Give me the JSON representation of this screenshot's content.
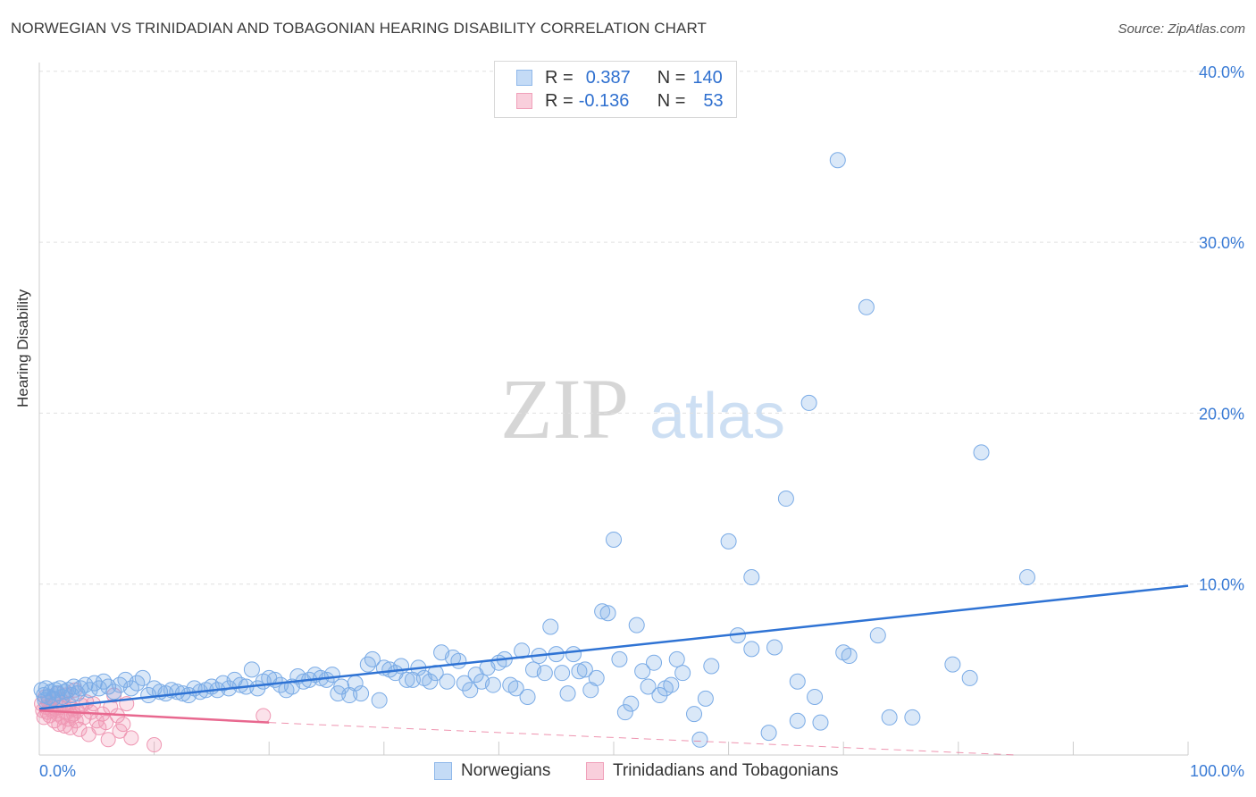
{
  "title": "NORWEGIAN VS TRINIDADIAN AND TOBAGONIAN HEARING DISABILITY CORRELATION CHART",
  "source": "Source: ZipAtlas.com",
  "watermark": {
    "zip": "ZIP",
    "atlas": "atlas"
  },
  "legend": {
    "rows": [
      {
        "r_label": "R =",
        "r_value": "0.387",
        "n_label": "N =",
        "n_value": "140",
        "color": "#8fb8ea",
        "fill": "#c4dbf6"
      },
      {
        "r_label": "R =",
        "r_value": "-0.136",
        "n_label": "N =",
        "n_value": "53",
        "color": "#f0a0ba",
        "fill": "#f9cfdc"
      }
    ]
  },
  "colors": {
    "blue_line": "#2f73d4",
    "pink_line": "#e8688f",
    "blue_point": "#7aabe6",
    "pink_point": "#ef97b3",
    "tick_text": "#3a7bd5",
    "grid": "#e0e0e0"
  },
  "chart_data": {
    "type": "scatter",
    "title": "NORWEGIAN VS TRINIDADIAN AND TOBAGONIAN HEARING DISABILITY CORRELATION CHART",
    "xlabel": "",
    "ylabel": "Hearing Disability",
    "xlim": [
      0,
      100
    ],
    "ylim": [
      0,
      41
    ],
    "x_tick_labels": [
      "0.0%",
      "100.0%"
    ],
    "y_ticks": [
      10,
      20,
      30,
      40
    ],
    "y_tick_labels": [
      "10.0%",
      "20.0%",
      "30.0%",
      "40.0%"
    ],
    "grid": true,
    "legend_position": "bottom",
    "series": [
      {
        "name": "Norwegians",
        "color": "#7aabe6",
        "trend": {
          "x": [
            0,
            100
          ],
          "y": [
            2.7,
            9.9
          ],
          "style": "solid"
        },
        "points": [
          [
            0.2,
            3.8
          ],
          [
            0.4,
            3.5
          ],
          [
            0.5,
            3.2
          ],
          [
            0.6,
            3.9
          ],
          [
            0.8,
            3.4
          ],
          [
            1.0,
            3.7
          ],
          [
            1.2,
            3.3
          ],
          [
            1.4,
            3.8
          ],
          [
            1.6,
            3.6
          ],
          [
            1.8,
            3.9
          ],
          [
            2.0,
            3.4
          ],
          [
            2.2,
            3.7
          ],
          [
            2.5,
            3.8
          ],
          [
            2.8,
            3.5
          ],
          [
            3.0,
            4.0
          ],
          [
            3.3,
            3.6
          ],
          [
            3.6,
            3.9
          ],
          [
            4.0,
            4.1
          ],
          [
            4.4,
            3.8
          ],
          [
            4.8,
            4.2
          ],
          [
            5.2,
            3.9
          ],
          [
            5.6,
            4.3
          ],
          [
            6.0,
            4.0
          ],
          [
            6.5,
            3.7
          ],
          [
            7.0,
            4.1
          ],
          [
            7.5,
            4.4
          ],
          [
            8.0,
            3.9
          ],
          [
            8.5,
            4.2
          ],
          [
            9.0,
            4.5
          ],
          [
            9.5,
            3.5
          ],
          [
            10.0,
            3.9
          ],
          [
            10.5,
            3.7
          ],
          [
            11.0,
            3.6
          ],
          [
            11.5,
            3.8
          ],
          [
            12.0,
            3.7
          ],
          [
            12.5,
            3.6
          ],
          [
            13.0,
            3.5
          ],
          [
            13.5,
            3.9
          ],
          [
            14.0,
            3.7
          ],
          [
            14.5,
            3.8
          ],
          [
            15.0,
            4.0
          ],
          [
            15.5,
            3.8
          ],
          [
            16.0,
            4.2
          ],
          [
            16.5,
            3.9
          ],
          [
            17.0,
            4.4
          ],
          [
            17.5,
            4.1
          ],
          [
            18.0,
            4.0
          ],
          [
            18.5,
            5.0
          ],
          [
            19.0,
            3.9
          ],
          [
            19.5,
            4.3
          ],
          [
            20.0,
            4.5
          ],
          [
            20.5,
            4.4
          ],
          [
            21.0,
            4.1
          ],
          [
            21.5,
            3.8
          ],
          [
            22.0,
            4.0
          ],
          [
            22.5,
            4.6
          ],
          [
            23.0,
            4.3
          ],
          [
            23.5,
            4.4
          ],
          [
            24.0,
            4.7
          ],
          [
            24.5,
            4.5
          ],
          [
            25.0,
            4.4
          ],
          [
            25.5,
            4.7
          ],
          [
            26.0,
            3.6
          ],
          [
            26.3,
            4.0
          ],
          [
            27.0,
            3.5
          ],
          [
            27.5,
            4.2
          ],
          [
            28.0,
            3.6
          ],
          [
            28.6,
            5.3
          ],
          [
            29.0,
            5.6
          ],
          [
            29.6,
            3.2
          ],
          [
            30.0,
            5.1
          ],
          [
            30.5,
            5.0
          ],
          [
            31.0,
            4.8
          ],
          [
            31.5,
            5.2
          ],
          [
            32.0,
            4.4
          ],
          [
            32.5,
            4.4
          ],
          [
            33.0,
            5.1
          ],
          [
            33.5,
            4.5
          ],
          [
            34.0,
            4.3
          ],
          [
            34.5,
            4.8
          ],
          [
            35.0,
            6.0
          ],
          [
            35.5,
            4.3
          ],
          [
            36.0,
            5.7
          ],
          [
            36.5,
            5.5
          ],
          [
            37.0,
            4.2
          ],
          [
            37.5,
            3.8
          ],
          [
            38.0,
            4.7
          ],
          [
            38.5,
            4.3
          ],
          [
            39.0,
            5.1
          ],
          [
            39.5,
            4.1
          ],
          [
            40.0,
            5.4
          ],
          [
            40.5,
            5.6
          ],
          [
            41.0,
            4.1
          ],
          [
            41.5,
            3.9
          ],
          [
            42.0,
            6.1
          ],
          [
            42.5,
            3.4
          ],
          [
            43.0,
            5.0
          ],
          [
            43.5,
            5.8
          ],
          [
            44.0,
            4.8
          ],
          [
            44.5,
            7.5
          ],
          [
            45.0,
            5.9
          ],
          [
            45.5,
            4.8
          ],
          [
            46.0,
            3.6
          ],
          [
            46.5,
            5.9
          ],
          [
            47.0,
            4.9
          ],
          [
            47.5,
            5.0
          ],
          [
            48.0,
            3.8
          ],
          [
            48.5,
            4.5
          ],
          [
            49.0,
            8.4
          ],
          [
            49.5,
            8.3
          ],
          [
            50.0,
            12.6
          ],
          [
            50.5,
            5.6
          ],
          [
            51.0,
            2.5
          ],
          [
            51.5,
            3.0
          ],
          [
            52.0,
            7.6
          ],
          [
            52.5,
            4.9
          ],
          [
            53.0,
            4.0
          ],
          [
            53.5,
            5.4
          ],
          [
            54.0,
            3.5
          ],
          [
            54.5,
            3.9
          ],
          [
            55.0,
            4.1
          ],
          [
            55.5,
            5.6
          ],
          [
            56.0,
            4.8
          ],
          [
            57.0,
            2.4
          ],
          [
            57.5,
            0.9
          ],
          [
            58.0,
            3.3
          ],
          [
            58.5,
            5.2
          ],
          [
            60.0,
            12.5
          ],
          [
            60.8,
            7.0
          ],
          [
            62.0,
            10.4
          ],
          [
            62.0,
            6.2
          ],
          [
            63.5,
            1.3
          ],
          [
            64.0,
            6.3
          ],
          [
            65.0,
            15.0
          ],
          [
            66.0,
            4.3
          ],
          [
            67.0,
            20.6
          ],
          [
            67.5,
            3.4
          ],
          [
            68.0,
            1.9
          ],
          [
            70.0,
            6.0
          ],
          [
            70.5,
            5.8
          ],
          [
            69.5,
            34.8
          ],
          [
            72.0,
            26.2
          ],
          [
            73.0,
            7.0
          ],
          [
            74.0,
            2.2
          ],
          [
            76.0,
            2.2
          ],
          [
            79.5,
            5.3
          ],
          [
            81.0,
            4.5
          ],
          [
            82.0,
            17.7
          ],
          [
            86.0,
            10.4
          ],
          [
            66.0,
            2.0
          ]
        ]
      },
      {
        "name": "Trinidadians and Tobagonians",
        "color": "#ef97b3",
        "trend": {
          "x": [
            0,
            20
          ],
          "y": [
            2.6,
            1.9
          ],
          "style": "solid",
          "extended_to": [
            85,
            0.0
          ],
          "extended_style": "dashed"
        },
        "points": [
          [
            0.2,
            3.0
          ],
          [
            0.3,
            2.6
          ],
          [
            0.4,
            2.2
          ],
          [
            0.5,
            3.4
          ],
          [
            0.6,
            2.8
          ],
          [
            0.7,
            2.5
          ],
          [
            0.8,
            3.1
          ],
          [
            0.9,
            2.3
          ],
          [
            1.0,
            2.9
          ],
          [
            1.1,
            2.6
          ],
          [
            1.2,
            3.3
          ],
          [
            1.3,
            2.0
          ],
          [
            1.4,
            2.7
          ],
          [
            1.5,
            3.6
          ],
          [
            1.6,
            2.4
          ],
          [
            1.7,
            1.8
          ],
          [
            1.8,
            2.8
          ],
          [
            1.9,
            3.2
          ],
          [
            2.0,
            2.2
          ],
          [
            2.1,
            2.9
          ],
          [
            2.2,
            1.7
          ],
          [
            2.3,
            3.5
          ],
          [
            2.4,
            2.5
          ],
          [
            2.5,
            2.1
          ],
          [
            2.6,
            3.0
          ],
          [
            2.7,
            1.6
          ],
          [
            2.8,
            2.3
          ],
          [
            2.9,
            2.7
          ],
          [
            3.0,
            2.4
          ],
          [
            3.1,
            3.8
          ],
          [
            3.2,
            2.0
          ],
          [
            3.3,
            2.6
          ],
          [
            3.5,
            1.5
          ],
          [
            3.7,
            2.9
          ],
          [
            3.9,
            2.2
          ],
          [
            4.1,
            3.1
          ],
          [
            4.3,
            1.2
          ],
          [
            4.5,
            2.5
          ],
          [
            4.7,
            3.0
          ],
          [
            5.0,
            2.0
          ],
          [
            5.2,
            1.6
          ],
          [
            5.5,
            2.4
          ],
          [
            5.8,
            1.9
          ],
          [
            6.0,
            0.9
          ],
          [
            6.2,
            2.8
          ],
          [
            6.5,
            3.5
          ],
          [
            6.8,
            2.3
          ],
          [
            7.0,
            1.4
          ],
          [
            7.3,
            1.8
          ],
          [
            7.6,
            3.0
          ],
          [
            8.0,
            1.0
          ],
          [
            10.0,
            0.6
          ],
          [
            19.5,
            2.3
          ]
        ]
      }
    ]
  },
  "bottom_legend": [
    {
      "label": "Norwegians",
      "color": "#8fb8ea",
      "fill": "#c4dbf6"
    },
    {
      "label": "Trinidadians and Tobagonians",
      "color": "#f0a0ba",
      "fill": "#f9cfdc"
    }
  ]
}
